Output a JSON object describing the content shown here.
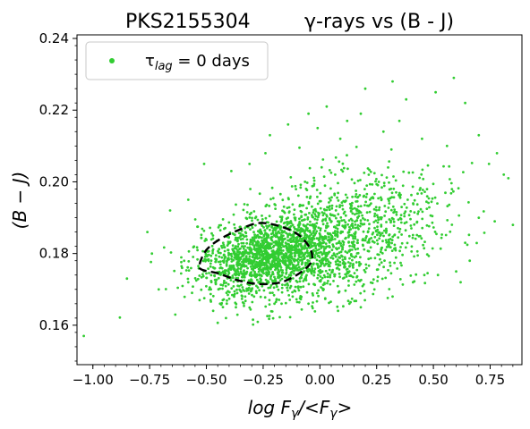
{
  "chart_data": {
    "type": "scatter",
    "title_left": "PKS2155304",
    "title_right": "γ-rays vs (B - J)",
    "xlabel": "log F_γ/<F_γ>",
    "ylabel": "(B − J)",
    "xlim": [
      -1.07,
      0.89
    ],
    "ylim": [
      0.149,
      0.241
    ],
    "xticks": [
      -1.0,
      -0.75,
      -0.5,
      -0.25,
      0.0,
      0.25,
      0.5,
      0.75
    ],
    "xtick_labels": [
      "−1.00",
      "−0.75",
      "−0.50",
      "−0.25",
      "0.00",
      "0.25",
      "0.50",
      "0.75"
    ],
    "yticks": [
      0.16,
      0.18,
      0.2,
      0.22,
      0.24
    ],
    "ytick_labels": [
      "0.16",
      "0.18",
      "0.20",
      "0.22",
      "0.24"
    ],
    "grid": false,
    "legend": {
      "placement": "top-left",
      "label": "τ_lag = 0  days"
    },
    "series": [
      {
        "name": "τ_lag = 0 days",
        "color": "#32cd32",
        "marker": "point",
        "points": [
          [
            -1.04,
            0.157
          ],
          [
            -0.85,
            0.173
          ],
          [
            -0.76,
            0.186
          ],
          [
            -0.74,
            0.18
          ],
          [
            -0.71,
            0.17
          ],
          [
            -0.66,
            0.192
          ],
          [
            -0.58,
            0.195
          ],
          [
            -0.51,
            0.205
          ],
          [
            -0.53,
            0.167
          ],
          [
            -0.58,
            0.172
          ],
          [
            -0.48,
            0.17
          ],
          [
            -0.44,
            0.166
          ],
          [
            -0.47,
            0.164
          ],
          [
            -0.37,
            0.165
          ],
          [
            -0.29,
            0.168
          ],
          [
            -0.2,
            0.166
          ],
          [
            -0.12,
            0.168
          ],
          [
            -0.05,
            0.166
          ],
          [
            0.08,
            0.164
          ],
          [
            0.13,
            0.166
          ],
          [
            0.18,
            0.165
          ],
          [
            0.24,
            0.17
          ],
          [
            0.32,
            0.168
          ],
          [
            0.41,
            0.172
          ],
          [
            0.46,
            0.174
          ],
          [
            0.52,
            0.174
          ],
          [
            0.6,
            0.175
          ],
          [
            0.62,
            0.172
          ],
          [
            0.66,
            0.178
          ],
          [
            0.64,
            0.183
          ],
          [
            0.7,
            0.19
          ],
          [
            0.77,
            0.189
          ],
          [
            0.85,
            0.188
          ],
          [
            0.81,
            0.202
          ],
          [
            0.83,
            0.201
          ],
          [
            0.78,
            0.208
          ],
          [
            0.7,
            0.213
          ],
          [
            0.64,
            0.222
          ],
          [
            0.59,
            0.229
          ],
          [
            0.51,
            0.225
          ],
          [
            0.38,
            0.223
          ],
          [
            0.32,
            0.228
          ],
          [
            0.2,
            0.226
          ],
          [
            0.35,
            0.217
          ],
          [
            0.18,
            0.219
          ],
          [
            0.12,
            0.217
          ],
          [
            0.03,
            0.221
          ],
          [
            -0.05,
            0.219
          ],
          [
            -0.14,
            0.216
          ],
          [
            -0.22,
            0.213
          ],
          [
            -0.24,
            0.208
          ],
          [
            -0.31,
            0.205
          ],
          [
            -0.39,
            0.203
          ],
          [
            -0.01,
            0.215
          ],
          [
            0.09,
            0.212
          ],
          [
            0.28,
            0.214
          ],
          [
            0.45,
            0.212
          ],
          [
            0.56,
            0.21
          ]
        ]
      }
    ],
    "contour": {
      "style": "dashed",
      "color": "#000000",
      "level_path": [
        [
          -0.53,
          0.177
        ],
        [
          -0.5,
          0.181
        ],
        [
          -0.44,
          0.184
        ],
        [
          -0.36,
          0.1865
        ],
        [
          -0.27,
          0.1885
        ],
        [
          -0.17,
          0.1875
        ],
        [
          -0.09,
          0.185
        ],
        [
          -0.04,
          0.181
        ],
        [
          -0.04,
          0.1775
        ],
        [
          -0.09,
          0.1745
        ],
        [
          -0.17,
          0.172
        ],
        [
          -0.27,
          0.1715
        ],
        [
          -0.36,
          0.1725
        ],
        [
          -0.45,
          0.1745
        ],
        [
          -0.52,
          0.1755
        ]
      ]
    },
    "generated_cloud": {
      "center": [
        -0.2,
        0.18
      ],
      "count": 2600,
      "seed": 7
    }
  }
}
